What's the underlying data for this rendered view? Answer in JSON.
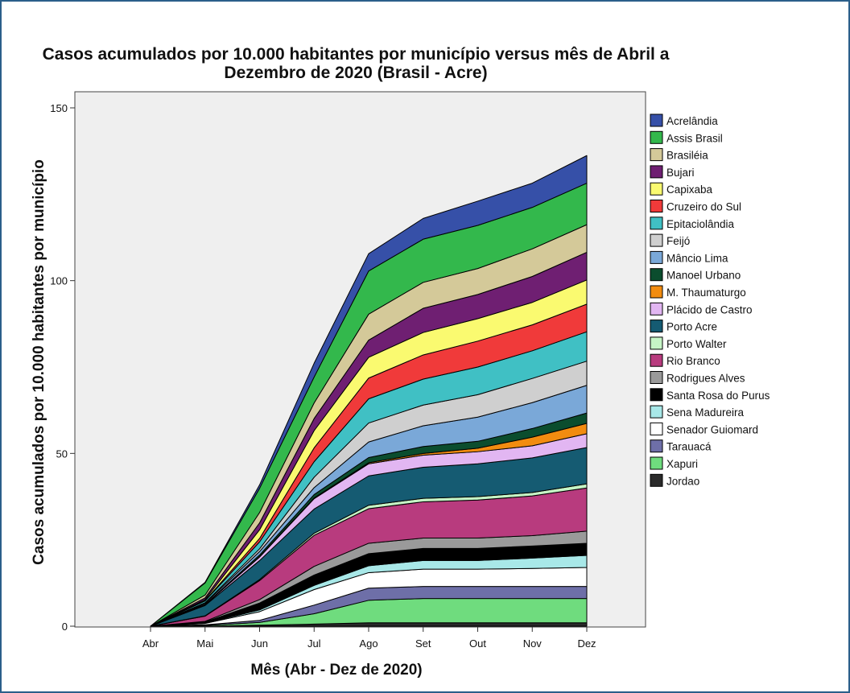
{
  "chart_data": {
    "type": "area",
    "stacked": true,
    "title_line1": "Casos acumulados por 10.000 habitantes por município versus mês de Abril a",
    "title_line2": "Dezembro de 2020 (Brasil - Acre)",
    "xlabel": "Mês (Abr - Dez de 2020)",
    "ylabel": "Casos acumulados por 10.000 habitantes por município",
    "categories": [
      "Abr",
      "Mai",
      "Jun",
      "Jul",
      "Ago",
      "Set",
      "Out",
      "Nov",
      "Dez"
    ],
    "ylim": [
      0,
      150
    ],
    "yticks": [
      0,
      50,
      100,
      150
    ],
    "legend_position": "right",
    "plot_background": "#efefef",
    "series": [
      {
        "name": "Jordao",
        "color": "#2a2a2a",
        "values": [
          0,
          0,
          0.3,
          0.6,
          1,
          1,
          1,
          1,
          1
        ]
      },
      {
        "name": "Xapuri",
        "color": "#6fdc7e",
        "values": [
          0,
          0.2,
          0.8,
          3,
          6.5,
          7,
          7,
          7,
          7
        ]
      },
      {
        "name": "Tarauacá",
        "color": "#6e6fa8",
        "values": [
          0,
          0.2,
          0.6,
          2.5,
          3.5,
          3.5,
          3.5,
          3.5,
          3.5
        ]
      },
      {
        "name": "Senador Guiomard",
        "color": "#ffffff",
        "values": [
          0,
          0.4,
          2.5,
          4.5,
          4.5,
          5,
          5,
          5.2,
          5.5
        ]
      },
      {
        "name": "Sena Madureira",
        "color": "#a8e8e8",
        "values": [
          0,
          0.1,
          0.5,
          1.2,
          2,
          2.5,
          2.5,
          3,
          3.5
        ]
      },
      {
        "name": "Santa Rosa do Purus",
        "color": "#000000",
        "values": [
          0,
          0.3,
          2,
          3,
          3.5,
          3.5,
          3.5,
          3.5,
          3.5
        ]
      },
      {
        "name": "Rodrigues Alves",
        "color": "#9a9a9a",
        "values": [
          0,
          0.2,
          1,
          2.5,
          3,
          3,
          3,
          3,
          3.5
        ]
      },
      {
        "name": "Rio Branco",
        "color": "#b83b7e",
        "values": [
          0,
          1.5,
          5.5,
          9,
          10,
          10.5,
          11,
          11.5,
          12.5
        ]
      },
      {
        "name": "Porto Walter",
        "color": "#c6f5c6",
        "values": [
          0,
          0.1,
          0.3,
          0.6,
          1,
          1,
          1,
          1,
          1.2
        ]
      },
      {
        "name": "Porto Acre",
        "color": "#155b72",
        "values": [
          0,
          3,
          5.5,
          7,
          8.5,
          9,
          9.5,
          10,
          10.5
        ]
      },
      {
        "name": "Plácido de Castro",
        "color": "#e2b6f2",
        "values": [
          0,
          0.2,
          1,
          3,
          3.5,
          3.5,
          3.5,
          3.5,
          4
        ]
      },
      {
        "name": "M. Thaumaturgo",
        "color": "#f28c10",
        "values": [
          0,
          0,
          0.1,
          0.2,
          0.3,
          0.5,
          1,
          2.5,
          3
        ]
      },
      {
        "name": "Manoel Urbano",
        "color": "#0b4d2e",
        "values": [
          0,
          0.1,
          0.5,
          1,
          1.5,
          2,
          2,
          2.5,
          3
        ]
      },
      {
        "name": "Mâncio Lima",
        "color": "#7aa8d8",
        "values": [
          0,
          0.3,
          1,
          2,
          4.5,
          6,
          7,
          7.5,
          8
        ]
      },
      {
        "name": "Feijó",
        "color": "#cfcfcf",
        "values": [
          0,
          0.2,
          0.8,
          3,
          5.5,
          6,
          6.5,
          7,
          7
        ]
      },
      {
        "name": "Epitaciolândia",
        "color": "#40c0c4",
        "values": [
          0,
          0.5,
          2,
          4.5,
          7,
          7.5,
          8,
          8,
          8.5
        ]
      },
      {
        "name": "Cruzeiro do Sul",
        "color": "#f03a3a",
        "values": [
          0,
          0.1,
          1,
          4,
          6,
          7,
          7.5,
          7.5,
          8
        ]
      },
      {
        "name": "Capixaba",
        "color": "#fafa70",
        "values": [
          0,
          0.3,
          2.5,
          5,
          6,
          6.5,
          6.5,
          6.5,
          7
        ]
      },
      {
        "name": "Bujari",
        "color": "#6f1f72",
        "values": [
          0,
          0.5,
          2,
          3.5,
          5,
          7,
          7,
          7.5,
          8
        ]
      },
      {
        "name": "Brasiléia",
        "color": "#d4c999",
        "values": [
          0,
          0.8,
          3,
          4.5,
          7.5,
          7.5,
          7.5,
          8,
          8
        ]
      },
      {
        "name": "Assis Brasil",
        "color": "#33b84c",
        "values": [
          0,
          3.5,
          7,
          7.5,
          12.5,
          12.5,
          12.5,
          12,
          12
        ]
      },
      {
        "name": "Acrelândia",
        "color": "#3650a8",
        "values": [
          0,
          0.2,
          1,
          4,
          5,
          6,
          7,
          7,
          8
        ]
      }
    ]
  }
}
